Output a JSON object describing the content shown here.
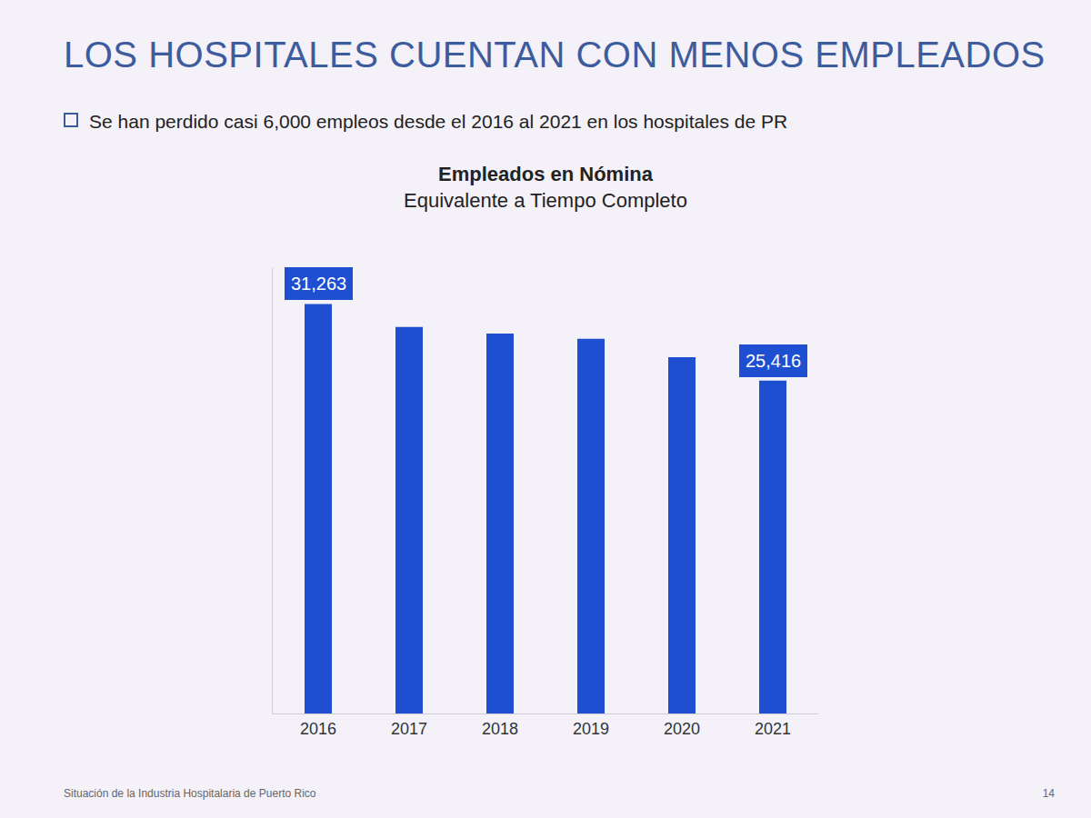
{
  "slide": {
    "heading": "LOS HOSPITALES CUENTAN CON MENOS EMPLEADOS",
    "bullet": "Se han perdido casi 6,000 empleos desde el 2016 al 2021 en los hospitales de PR",
    "footer": "Situación de la Industria Hospitalaria de Puerto Rico",
    "page": "14"
  },
  "chart_data": {
    "type": "bar",
    "title": "Empleados en Nómina",
    "subtitle": "Equivalente a Tiempo Completo",
    "categories": [
      "2016",
      "2017",
      "2018",
      "2019",
      "2020",
      "2021"
    ],
    "values": [
      31263,
      29500,
      29000,
      28600,
      27200,
      25416
    ],
    "data_labels": true,
    "value_labels": [
      "31,263",
      null,
      null,
      null,
      null,
      "25,416"
    ],
    "color": "#1f4fd1",
    "ylim": [
      0,
      34000
    ],
    "tick_labels": "x",
    "grid": false
  }
}
